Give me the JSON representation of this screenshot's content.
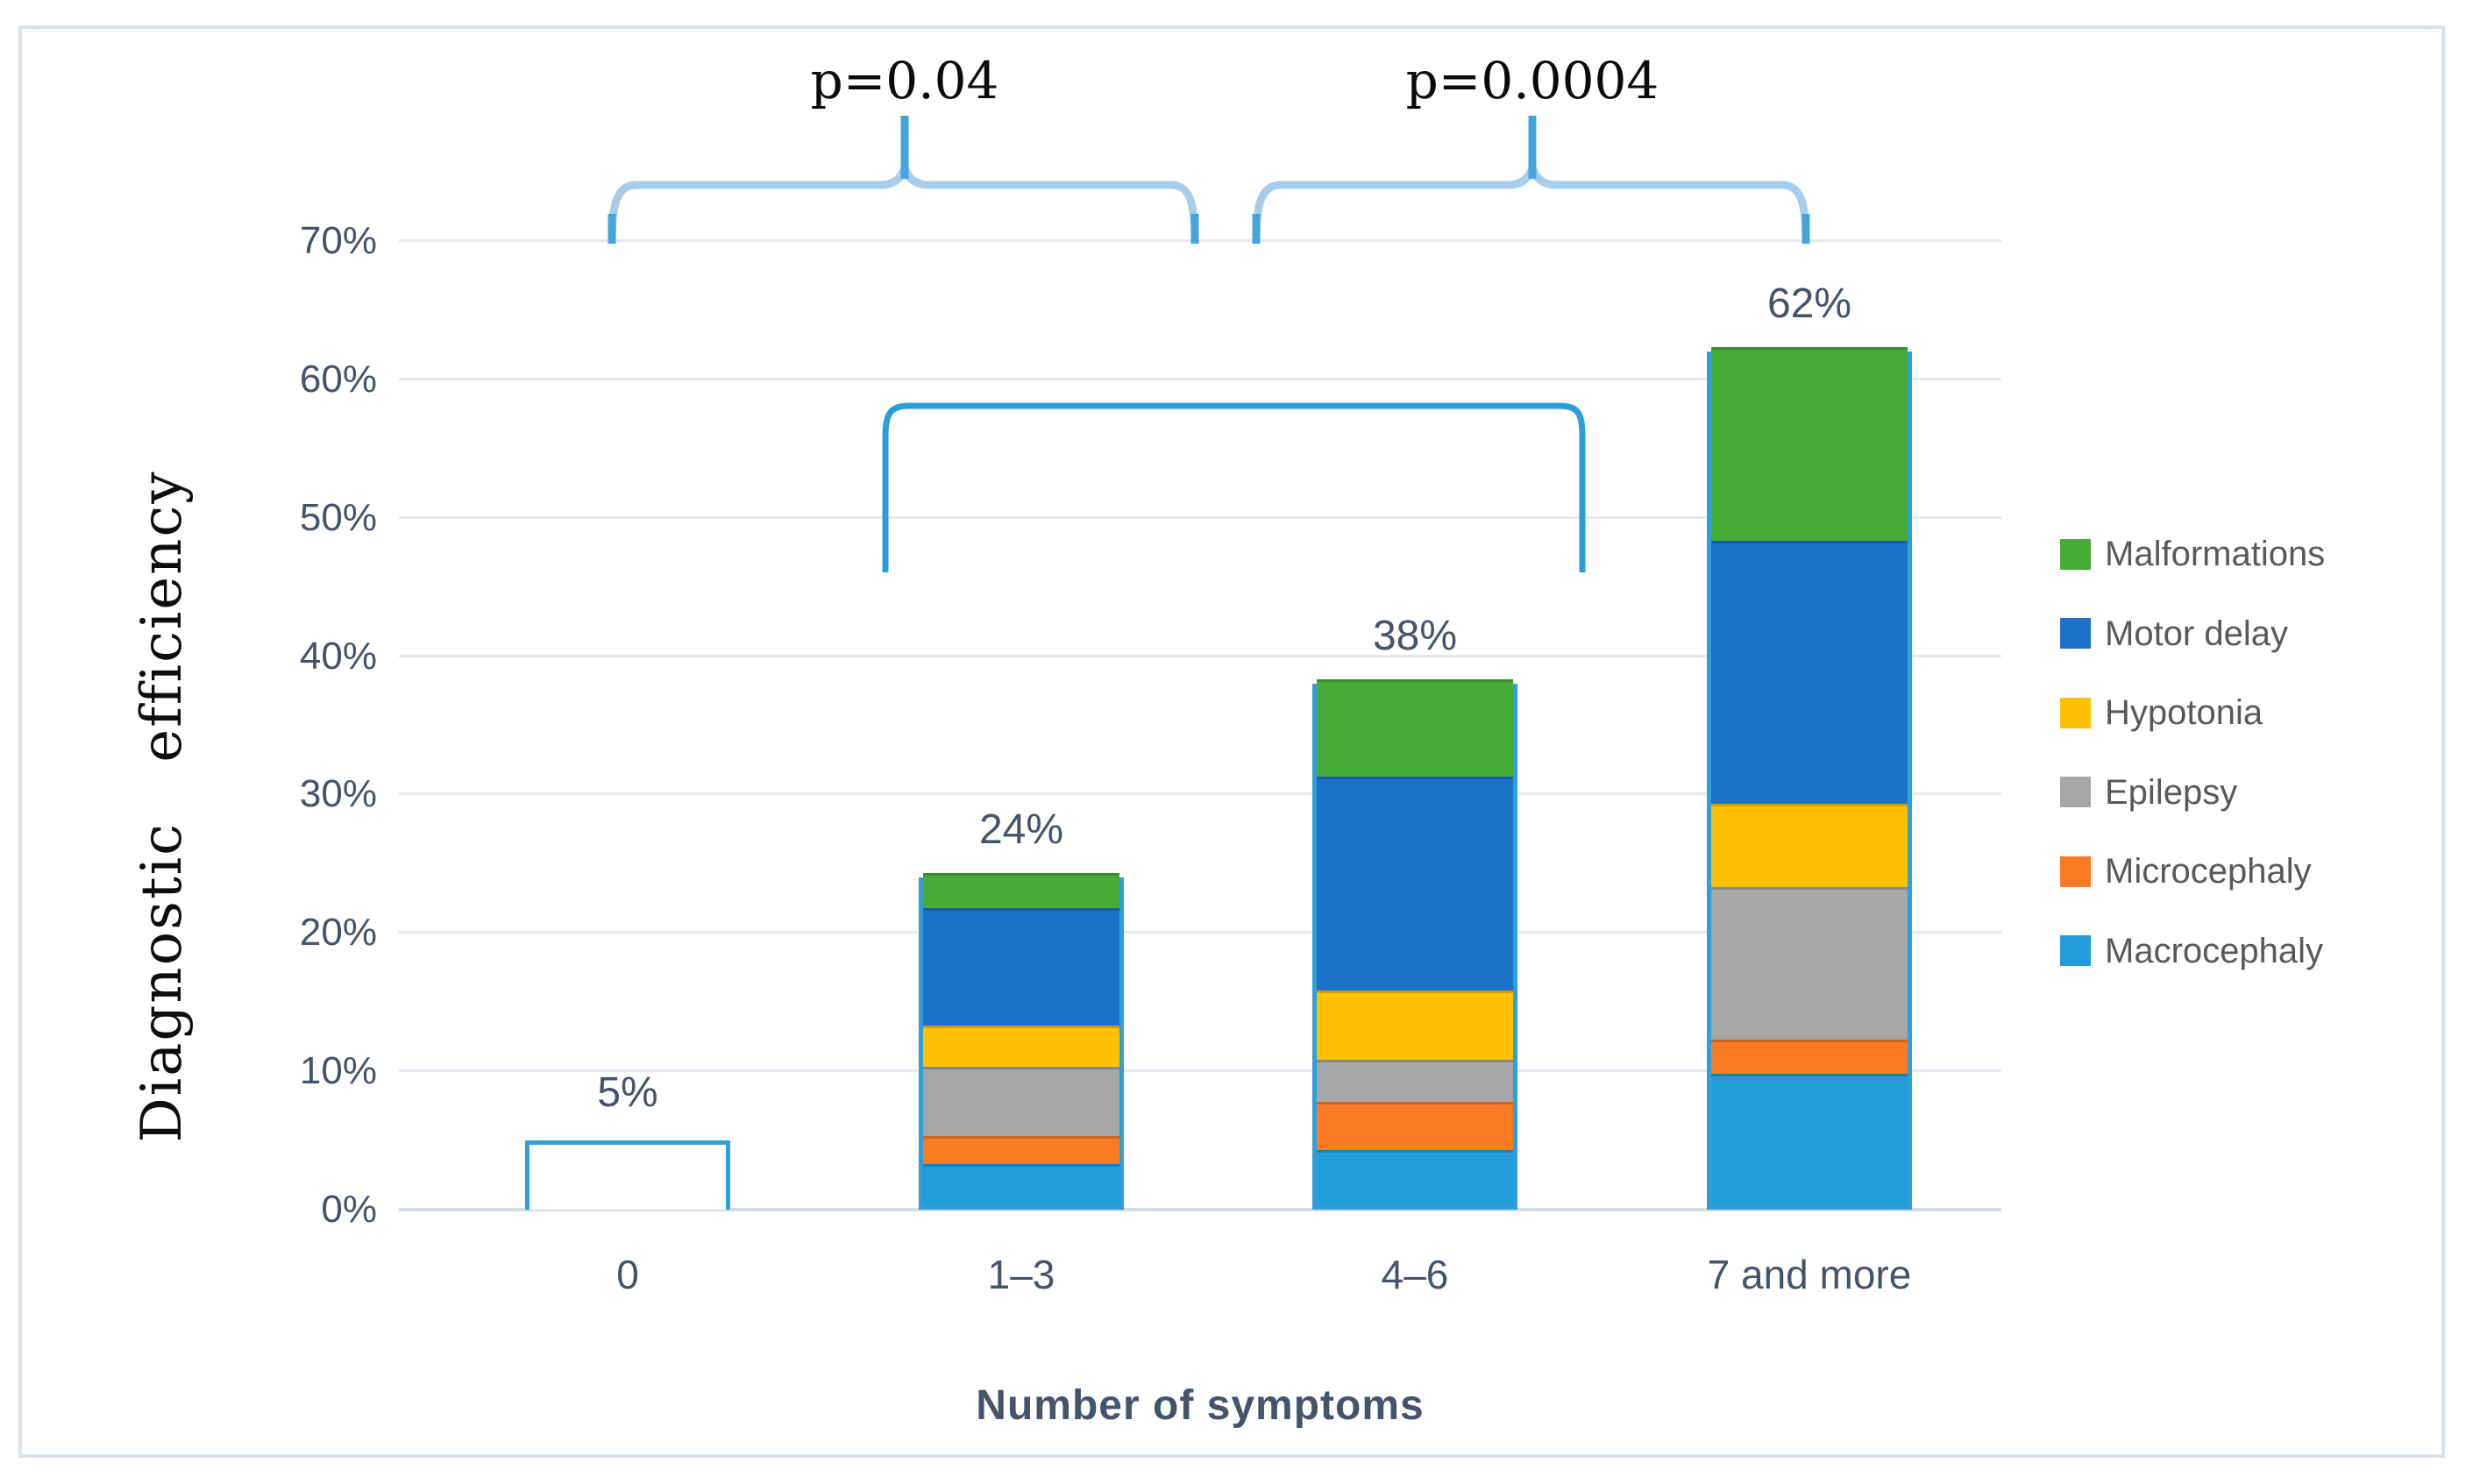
{
  "chart_data": {
    "type": "bar",
    "stacked": true,
    "categories": [
      "0",
      "1–3",
      "4–6",
      "7 and more"
    ],
    "totals": [
      5,
      24,
      38,
      62
    ],
    "totals_labels": [
      "5%",
      "24%",
      "38%",
      "62%"
    ],
    "series": [
      {
        "name": "Macrocephaly",
        "color": "#229DDA",
        "values": [
          0,
          3,
          4,
          9.5
        ]
      },
      {
        "name": "Microcephaly",
        "color": "#FB7B25",
        "values": [
          0,
          2,
          3.5,
          2.5
        ]
      },
      {
        "name": "Epilepsy",
        "color": "#A6A6A6",
        "values": [
          0,
          5,
          3,
          11
        ]
      },
      {
        "name": "Hypotonia",
        "color": "#FFC002",
        "values": [
          0,
          3,
          5,
          6
        ]
      },
      {
        "name": "Motor delay",
        "color": "#1C72C9",
        "values": [
          0,
          8.5,
          15.5,
          19
        ]
      },
      {
        "name": "Malformations",
        "color": "#46AC35",
        "values": [
          0,
          2.5,
          7,
          14
        ]
      }
    ],
    "first_bar_outline_only": true,
    "accent_color": "#2E9FD9",
    "legend_order": [
      "Malformations",
      "Motor delay",
      "Hypotonia",
      "Epilepsy",
      "Microcephaly",
      "Macrocephaly"
    ],
    "legend_position": "right",
    "grid": true,
    "xlabel": "Number of symptoms",
    "ylabel": "Diagnostic efficiency",
    "ylim": [
      0,
      70
    ],
    "ytick_step": 10,
    "ytick_labels": [
      "0%",
      "10%",
      "20%",
      "30%",
      "40%",
      "50%",
      "60%",
      "70%"
    ]
  },
  "annotations": {
    "brackets": [
      {
        "label": "p=0.04",
        "connects": [
          "0",
          "1–3"
        ]
      },
      {
        "label": "p=0.0004",
        "connects": [
          "4–6",
          "7 and more"
        ]
      },
      {
        "label": "",
        "connects": [
          "1–3",
          "4–6"
        ]
      }
    ]
  }
}
